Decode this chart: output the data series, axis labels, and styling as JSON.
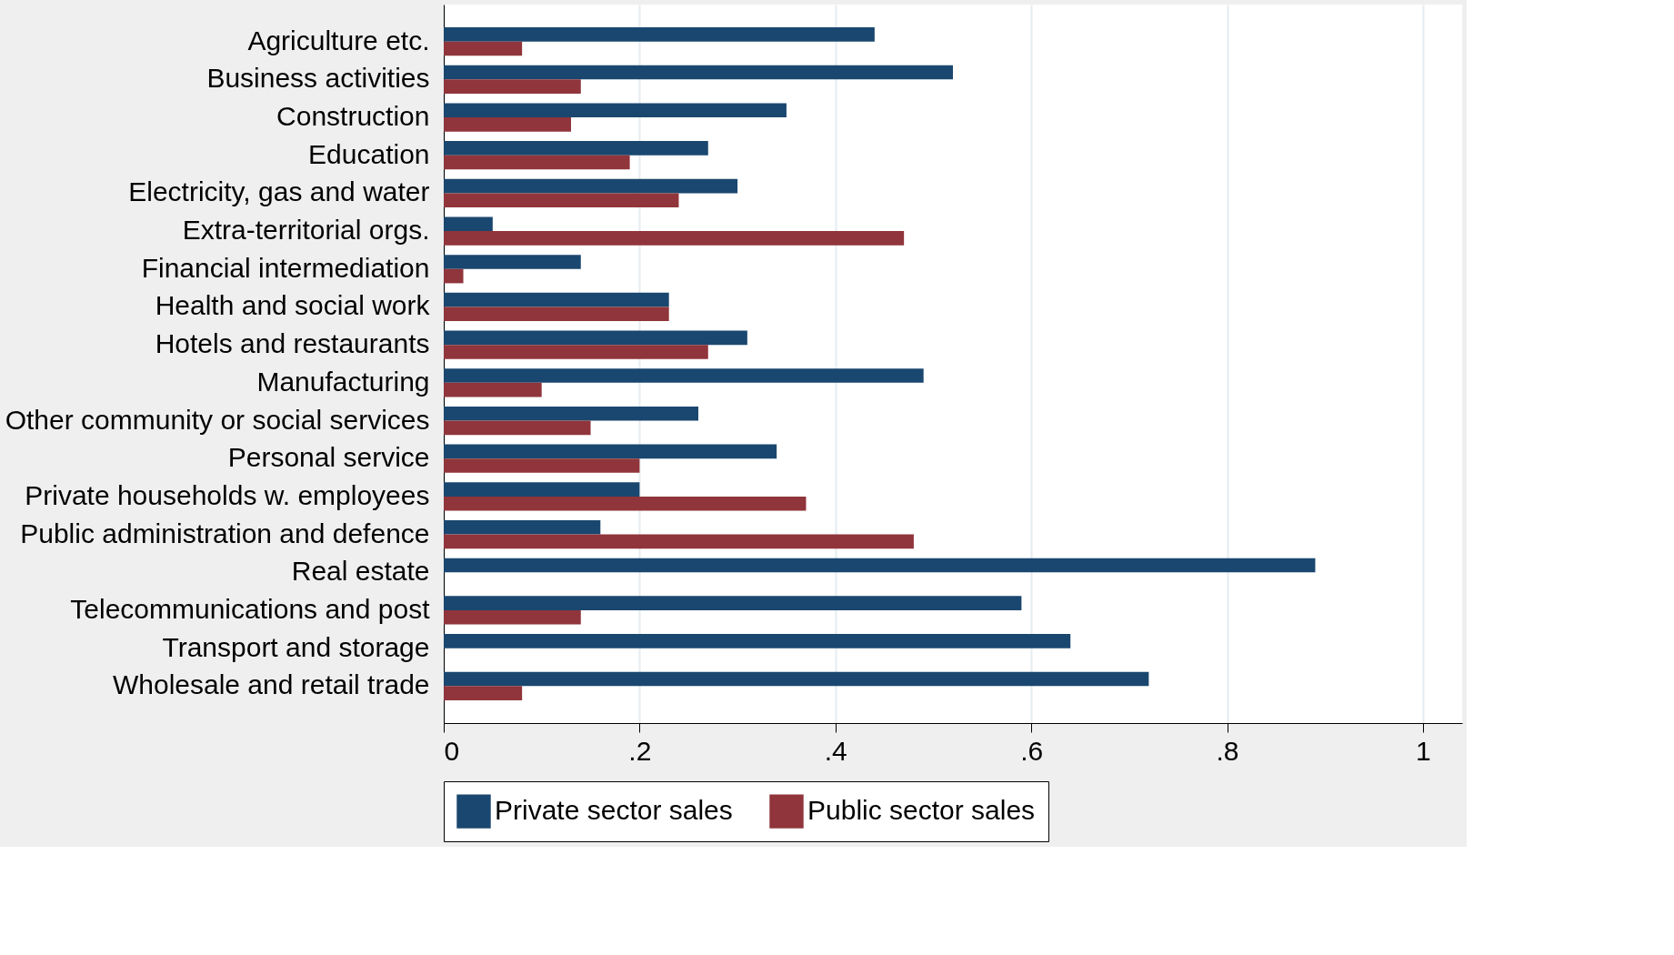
{
  "chart_data": {
    "type": "bar",
    "orientation": "horizontal",
    "categories": [
      "Agriculture etc.",
      "Business activities",
      "Construction",
      "Education",
      "Electricity, gas and water",
      "Extra-territorial orgs.",
      "Financial intermediation",
      "Health and social work",
      "Hotels and restaurants",
      "Manufacturing",
      "Other community or social services",
      "Personal service",
      "Private households w. employees",
      "Public administration and defence",
      "Real estate",
      "Telecommunications and post",
      "Transport and storage",
      "Wholesale and retail trade"
    ],
    "series": [
      {
        "name": "Private sector sales",
        "color": "#1a476f",
        "values": [
          0.44,
          0.52,
          0.35,
          0.27,
          0.3,
          0.05,
          0.14,
          0.23,
          0.31,
          0.49,
          0.26,
          0.34,
          0.2,
          0.16,
          0.89,
          0.59,
          0.64,
          0.72
        ]
      },
      {
        "name": "Public sector sales",
        "color": "#90353b",
        "values": [
          0.08,
          0.14,
          0.13,
          0.19,
          0.24,
          0.47,
          0.02,
          0.23,
          0.27,
          0.1,
          0.15,
          0.2,
          0.37,
          0.48,
          null,
          0.14,
          null,
          0.08
        ]
      }
    ],
    "xlim": [
      0,
      1.04
    ],
    "xticks": [
      0,
      {
        "value": 0.2,
        "label": ".2"
      },
      {
        "value": 0.4,
        "label": ".4"
      },
      {
        "value": 0.6,
        "label": ".6"
      },
      {
        "value": 0.8,
        "label": ".8"
      },
      1
    ],
    "grid": "x",
    "legend": "bottom"
  }
}
